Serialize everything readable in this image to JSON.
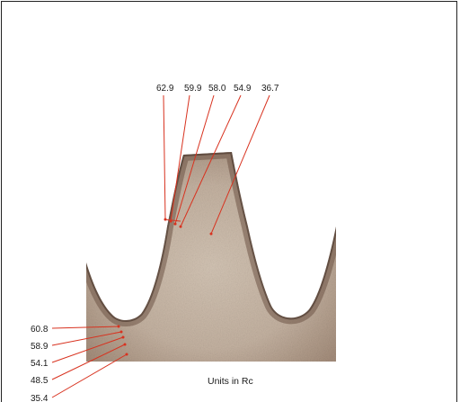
{
  "top_readings": [
    "62.9",
    "59.9",
    "58.0",
    "54.9",
    "36.7"
  ],
  "root_readings": [
    "60.8",
    "58.9",
    "54.1",
    "48.5",
    "35.4"
  ],
  "caption": "Units in Rc",
  "colors": {
    "leader_line": "#d8321f",
    "case_layer": "#6e5446",
    "core": "#c7b6a6",
    "frame": "#222222"
  }
}
